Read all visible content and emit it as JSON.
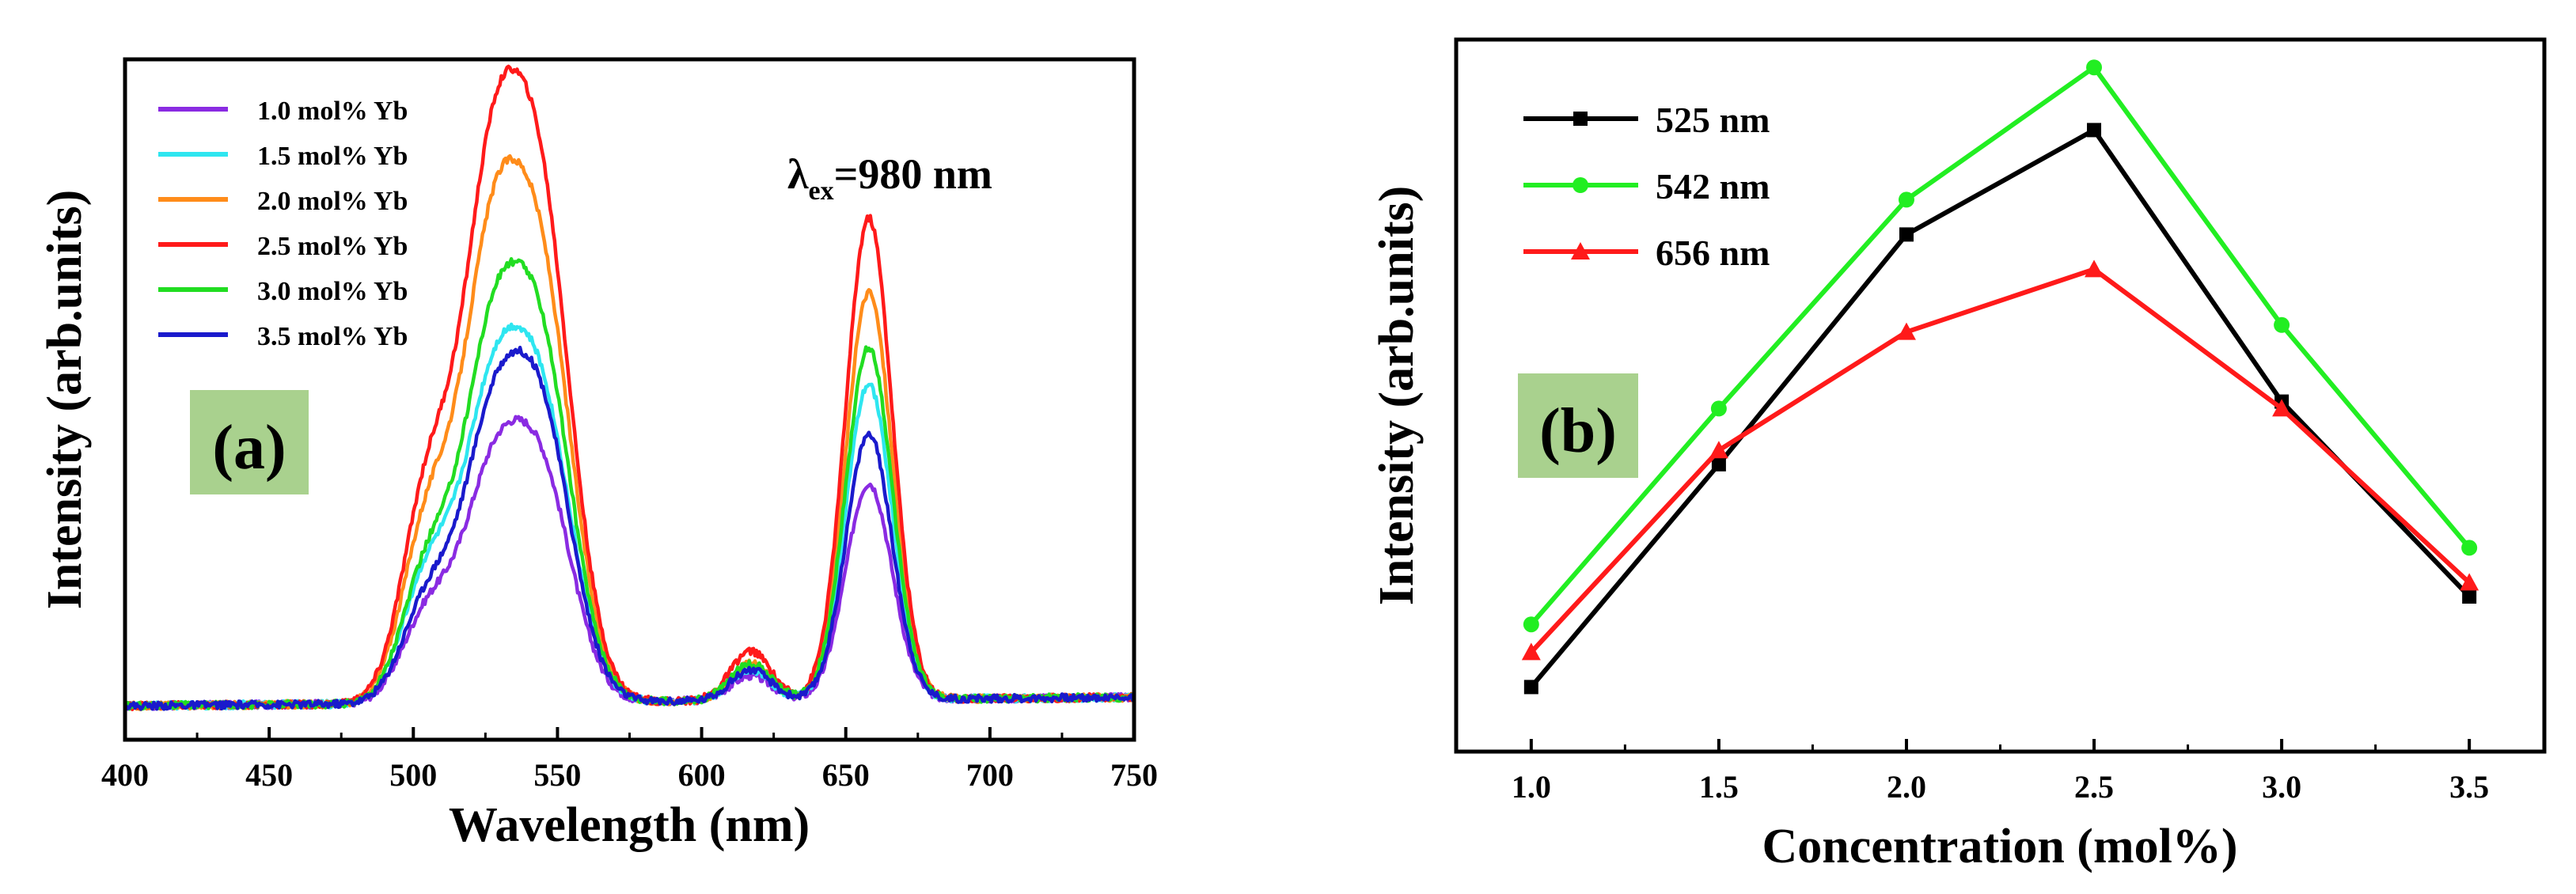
{
  "chart_data": [
    {
      "type": "line",
      "panel_label": "(a)",
      "panel_label_bg": "#a9d18e",
      "xlabel": "Wavelength (nm)",
      "ylabel": "Intensity (arb.units)",
      "xlim": [
        400,
        750
      ],
      "ylim": [
        0,
        1.0
      ],
      "xticks": [
        "400",
        "450",
        "500",
        "550",
        "600",
        "650",
        "700",
        "750"
      ],
      "annotation": {
        "symbol": "λ",
        "subscript": "ex",
        "text": "=980 nm"
      },
      "peaks": [
        {
          "center": 505,
          "width": 9
        },
        {
          "center": 526,
          "width": 10
        },
        {
          "center": 544,
          "width": 11
        },
        {
          "center": 617,
          "width": 7
        },
        {
          "center": 658,
          "width": 8
        }
      ],
      "series": [
        {
          "name": "1.0 mol% Yb",
          "color": "#8a2be2",
          "peak_heights": [
            0.14,
            0.3,
            0.36,
            0.04,
            0.35
          ]
        },
        {
          "name": "1.5 mol% Yb",
          "color": "#2ee6f0",
          "peak_heights": [
            0.2,
            0.41,
            0.47,
            0.05,
            0.51
          ]
        },
        {
          "name": "2.0 mol% Yb",
          "color": "#ff8c1a",
          "peak_heights": [
            0.28,
            0.61,
            0.66,
            0.06,
            0.66
          ]
        },
        {
          "name": "2.5 mol% Yb",
          "color": "#ff1a1a",
          "peak_heights": [
            0.33,
            0.71,
            0.77,
            0.08,
            0.78
          ]
        },
        {
          "name": "3.0 mol% Yb",
          "color": "#22dd22",
          "peak_heights": [
            0.21,
            0.48,
            0.55,
            0.06,
            0.57
          ]
        },
        {
          "name": "3.5 mol% Yb",
          "color": "#1a1acc",
          "peak_heights": [
            0.16,
            0.37,
            0.45,
            0.05,
            0.43
          ]
        }
      ]
    },
    {
      "type": "line",
      "panel_label": "(b)",
      "panel_label_bg": "#a9d18e",
      "xlabel": "Concentration (mol%)",
      "ylabel": "Intensity (arb.units)",
      "x": [
        1.0,
        1.5,
        2.0,
        2.5,
        3.0,
        3.5
      ],
      "xticks": [
        "1.0",
        "1.5",
        "2.0",
        "2.5",
        "3.0",
        "3.5"
      ],
      "xlim": [
        0.8,
        3.7
      ],
      "ylim": [
        0,
        100
      ],
      "series": [
        {
          "name": "525 nm",
          "color": "#000000",
          "marker": "square",
          "values": [
            7,
            39,
            72,
            87,
            48,
            20
          ]
        },
        {
          "name": "542 nm",
          "color": "#22ee22",
          "marker": "circle",
          "values": [
            16,
            47,
            77,
            96,
            59,
            27
          ]
        },
        {
          "name": "656 nm",
          "color": "#ff1a1a",
          "marker": "triangle",
          "values": [
            12,
            41,
            58,
            67,
            47,
            22
          ]
        }
      ]
    }
  ]
}
